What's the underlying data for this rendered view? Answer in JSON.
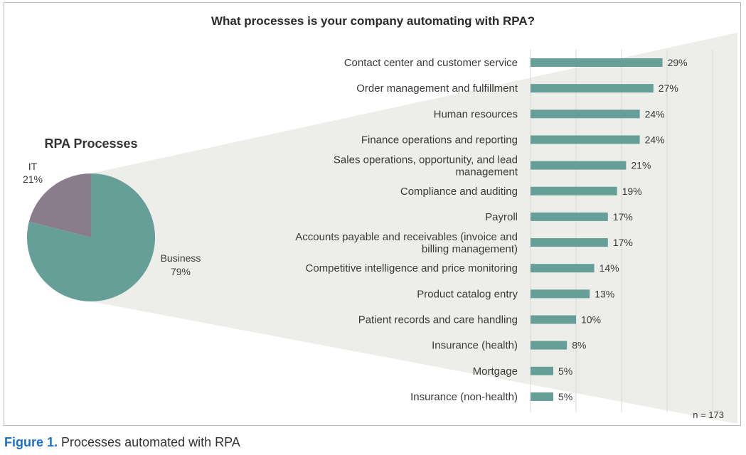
{
  "figure": {
    "label": "Figure 1.",
    "caption": "Processes automated with RPA"
  },
  "colors": {
    "bar": "#669e98",
    "pie_business": "#669e98",
    "pie_it": "#8a7b8d",
    "wedge": "#ededea",
    "grid": "#d8d8d8",
    "text": "#3a3a3a"
  },
  "chart_data": [
    {
      "type": "pie",
      "title": "RPA Processes",
      "slices": [
        {
          "label": "Business",
          "value": 79,
          "value_label": "79%"
        },
        {
          "label": "IT",
          "value": 21,
          "value_label": "21%"
        }
      ]
    },
    {
      "type": "bar",
      "orientation": "horizontal",
      "title": "What processes is your company automating with RPA?",
      "categories": [
        [
          "Contact center and customer service"
        ],
        [
          "Order management and fulfillment"
        ],
        [
          "Human resources"
        ],
        [
          "Finance operations and reporting"
        ],
        [
          "Sales operations, opportunity, and lead",
          "management"
        ],
        [
          "Compliance and auditing"
        ],
        [
          "Payroll"
        ],
        [
          "Accounts payable and receivables (invoice and",
          "billing management)"
        ],
        [
          "Competitive intelligence and price monitoring"
        ],
        [
          "Product catalog entry"
        ],
        [
          "Patient records and care handling"
        ],
        [
          "Insurance (health)"
        ],
        [
          "Mortgage"
        ],
        [
          "Insurance (non-health)"
        ]
      ],
      "values": [
        29,
        27,
        24,
        24,
        21,
        19,
        17,
        17,
        14,
        13,
        10,
        8,
        5,
        5
      ],
      "value_labels": [
        "29%",
        "27%",
        "24%",
        "24%",
        "21%",
        "19%",
        "17%",
        "17%",
        "14%",
        "13%",
        "10%",
        "8%",
        "5%",
        "5%"
      ],
      "xlim": [
        0,
        40
      ],
      "grid": true,
      "note": "n = 173"
    }
  ]
}
